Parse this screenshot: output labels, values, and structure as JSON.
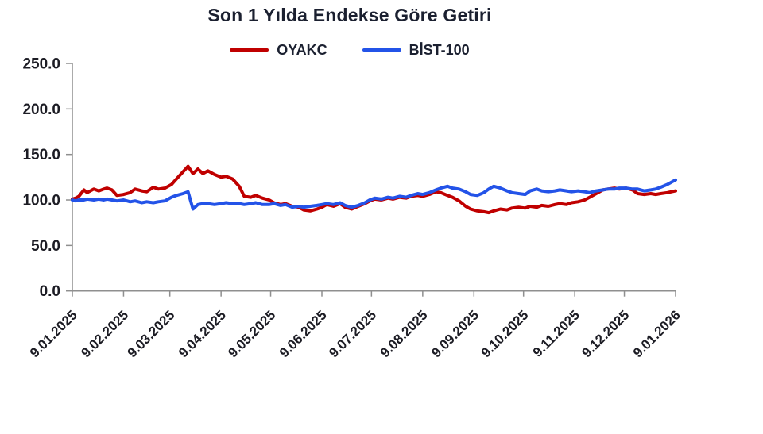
{
  "chart_data": {
    "type": "line",
    "title": "Son 1 Yılda Endekse Göre Getiri",
    "legend_position": "top",
    "grid": false,
    "background": "#ffffff",
    "axis_color": "#8f8f8f",
    "text_color": "#1c1c24",
    "x_axis": {
      "tick_labels": [
        "9.01.2025",
        "9.02.2025",
        "9.03.2025",
        "9.04.2025",
        "9.05.2025",
        "9.06.2025",
        "9.07.2025",
        "9.08.2025",
        "9.09.2025",
        "9.10.2025",
        "9.11.2025",
        "9.12.2025",
        "9.01.2026"
      ],
      "tick_days": [
        0,
        31,
        59,
        90,
        120,
        151,
        181,
        212,
        243,
        273,
        304,
        334,
        365
      ],
      "range_days": [
        0,
        365
      ]
    },
    "y_axis": {
      "tick_values": [
        0,
        50,
        100,
        150,
        200,
        250
      ],
      "tick_labels": [
        "0.0",
        "50.0",
        "100.0",
        "150.0",
        "200.0",
        "250.0"
      ],
      "range": [
        0,
        250
      ]
    },
    "x_days": [
      0,
      2,
      4,
      7,
      9,
      13,
      16,
      19,
      21,
      24,
      27,
      31,
      35,
      38,
      42,
      45,
      49,
      52,
      56,
      60,
      63,
      67,
      70,
      73,
      76,
      79,
      82,
      86,
      90,
      93,
      97,
      101,
      104,
      108,
      111,
      115,
      119,
      122,
      126,
      129,
      133,
      137,
      140,
      144,
      148,
      151,
      154,
      158,
      162,
      165,
      169,
      173,
      177,
      180,
      183,
      187,
      191,
      194,
      198,
      202,
      205,
      209,
      212,
      216,
      220,
      223,
      227,
      230,
      234,
      238,
      241,
      245,
      249,
      252,
      255,
      259,
      263,
      266,
      270,
      274,
      277,
      281,
      284,
      288,
      292,
      295,
      299,
      302,
      306,
      310,
      313,
      317,
      321,
      324,
      328,
      331,
      335,
      339,
      342,
      346,
      350,
      353,
      356,
      360,
      365
    ],
    "series": [
      {
        "name": "OYAKC",
        "color": "#c00000",
        "values": [
          101,
          102,
          104,
          111,
          108,
          112,
          110,
          112,
          113,
          111,
          105,
          106,
          108,
          112,
          110,
          109,
          114,
          112,
          113,
          117,
          123,
          131,
          137,
          129,
          134,
          129,
          132,
          128,
          125,
          126,
          123,
          115,
          104,
          103,
          105,
          102,
          100,
          97,
          95,
          96,
          93,
          92,
          89,
          88,
          90,
          92,
          95,
          93,
          96,
          92,
          90,
          93,
          96,
          99,
          101,
          100,
          102,
          101,
          103,
          102,
          104,
          105,
          104,
          106,
          109,
          108,
          105,
          103,
          99,
          93,
          90,
          88,
          87,
          86,
          88,
          90,
          89,
          91,
          92,
          91,
          93,
          92,
          94,
          93,
          95,
          96,
          95,
          97,
          98,
          100,
          103,
          107,
          111,
          112,
          113,
          112,
          113,
          111,
          107,
          106,
          107,
          106,
          107,
          108,
          110
        ]
      },
      {
        "name": "BİST-100",
        "color": "#2353e8",
        "values": [
          100,
          99,
          100,
          100,
          101,
          100,
          101,
          100,
          101,
          100,
          99,
          100,
          98,
          99,
          97,
          98,
          97,
          98,
          99,
          103,
          105,
          107,
          109,
          90,
          95,
          96,
          96,
          95,
          96,
          97,
          96,
          96,
          95,
          96,
          97,
          95,
          95,
          96,
          94,
          95,
          92,
          93,
          92,
          93,
          94,
          95,
          96,
          95,
          97,
          94,
          92,
          94,
          97,
          100,
          102,
          101,
          103,
          102,
          104,
          103,
          105,
          107,
          106,
          108,
          111,
          113,
          115,
          113,
          112,
          109,
          106,
          105,
          108,
          112,
          115,
          113,
          110,
          108,
          107,
          106,
          110,
          112,
          110,
          109,
          110,
          111,
          110,
          109,
          110,
          109,
          108,
          110,
          111,
          112,
          112,
          113,
          113,
          112,
          112,
          110,
          111,
          112,
          114,
          117,
          122
        ]
      }
    ]
  }
}
